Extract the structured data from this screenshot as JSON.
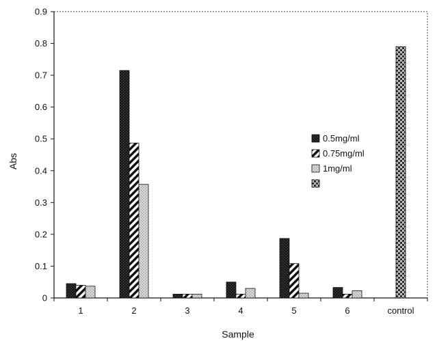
{
  "chart_data": {
    "type": "bar",
    "title": "",
    "xlabel": "Sample",
    "ylabel": "Abs",
    "ylim": [
      0,
      0.9
    ],
    "yticks": [
      "0",
      "0.1",
      "0.2",
      "0.3",
      "0.4",
      "0.5",
      "0.6",
      "0.7",
      "0.8",
      "0.9"
    ],
    "categories": [
      "1",
      "2",
      "3",
      "4",
      "5",
      "6",
      "control"
    ],
    "series": [
      {
        "name": "0.5mg/ml",
        "pattern": "dark",
        "values": [
          0.045,
          0.715,
          0.012,
          0.05,
          0.187,
          0.033,
          null
        ]
      },
      {
        "name": "0.75mg/ml",
        "pattern": "hatch",
        "values": [
          0.04,
          0.487,
          0.012,
          0.012,
          0.108,
          0.012,
          null
        ]
      },
      {
        "name": "1mg/ml",
        "pattern": "light-dots",
        "values": [
          0.037,
          0.357,
          0.012,
          0.03,
          0.015,
          0.023,
          null
        ]
      },
      {
        "name": "",
        "pattern": "checker",
        "values": [
          null,
          null,
          null,
          null,
          null,
          null,
          0.79
        ]
      }
    ],
    "legend_position": "right-center",
    "grid": false
  }
}
